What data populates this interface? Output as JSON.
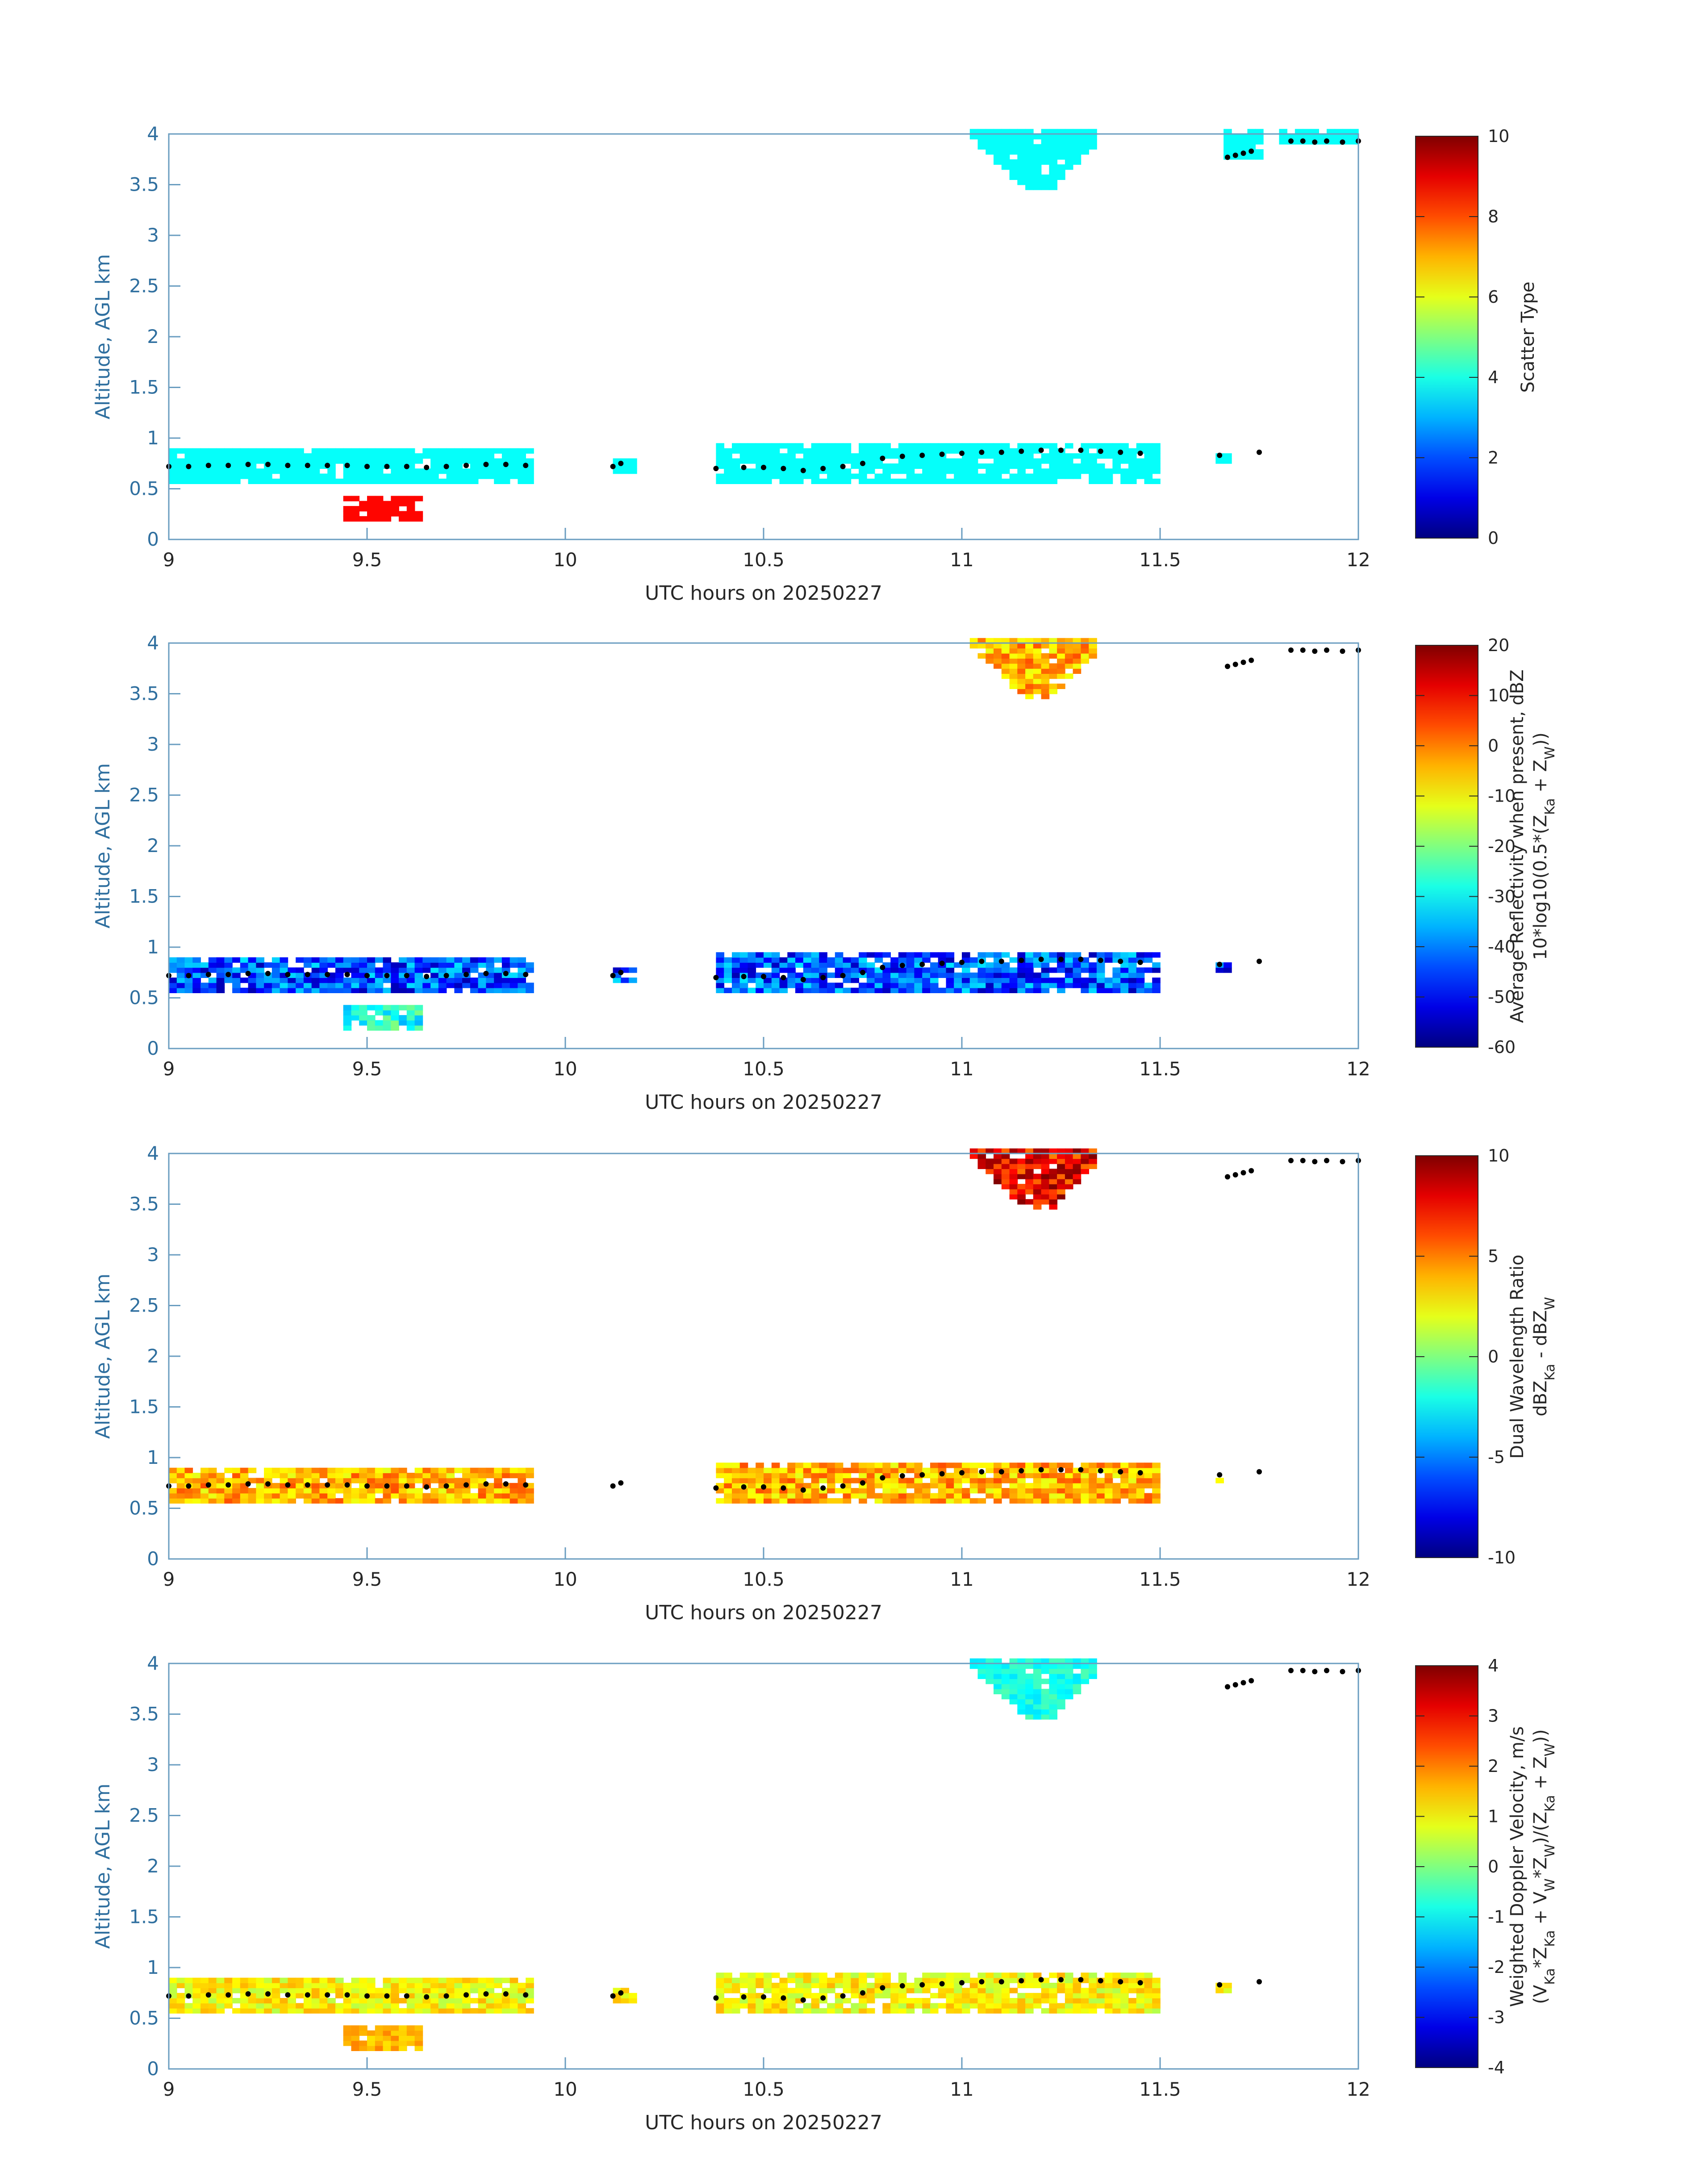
{
  "chart_data": [
    {
      "type": "heatmap",
      "xlabel": "UTC hours on 20250227",
      "ylabel": "Altitude, AGL km",
      "xlim": [
        9,
        12
      ],
      "ylim": [
        0,
        4
      ],
      "xticks": [
        "9",
        "9.5",
        "10",
        "10.5",
        "11",
        "11.5",
        "12"
      ],
      "yticks": [
        "0",
        "0.5",
        "1",
        "1.5",
        "2",
        "2.5",
        "3",
        "3.5",
        "4"
      ],
      "colorbar": {
        "label_lines": [
          "Scatter Type"
        ],
        "range": [
          0,
          10
        ],
        "ticks": [
          "0",
          "2",
          "4",
          "6",
          "8",
          "10"
        ]
      },
      "cloud_layer": {
        "x_start": 9.0,
        "x_end": 9.9,
        "alt_bottom": 0.6,
        "alt_top": 0.9,
        "value": 3.8
      },
      "cloud_layer_2": {
        "x_start": 10.38,
        "x_end": 11.48,
        "alt_bottom": 0.6,
        "alt_top": 0.95,
        "value": 3.8
      },
      "upper_cloud": {
        "x_start": 11.05,
        "x_end": 11.3,
        "alt_bottom": 3.45,
        "alt_top": 4.0,
        "value": 3.8
      },
      "surface_echo": {
        "x_start": 9.45,
        "x_end": 9.6,
        "alt_bottom": 0.18,
        "alt_top": 0.4,
        "value": 8.5
      }
    },
    {
      "type": "heatmap",
      "xlabel": "UTC hours on 20250227",
      "ylabel": "Altitude, AGL km",
      "xlim": [
        9,
        12
      ],
      "ylim": [
        0,
        4
      ],
      "xticks": [
        "9",
        "9.5",
        "10",
        "10.5",
        "11",
        "11.5",
        "12"
      ],
      "yticks": [
        "0",
        "0.5",
        "1",
        "1.5",
        "2",
        "2.5",
        "3",
        "3.5",
        "4"
      ],
      "colorbar": {
        "label_lines": [
          "Average Reflectivity when present, dBZ",
          "10*log10(0.5*(Z",
          "Ka",
          " + Z",
          "W",
          "))"
        ],
        "range": [
          -60,
          20
        ],
        "ticks": [
          "-60",
          "-50",
          "-40",
          "-30",
          "-20",
          "-10",
          "0",
          "10",
          "20"
        ]
      }
    },
    {
      "type": "heatmap",
      "xlabel": "UTC hours on 20250227",
      "ylabel": "Altitude, AGL km",
      "xlim": [
        9,
        12
      ],
      "ylim": [
        0,
        4
      ],
      "xticks": [
        "9",
        "9.5",
        "10",
        "10.5",
        "11",
        "11.5",
        "12"
      ],
      "yticks": [
        "0",
        "0.5",
        "1",
        "1.5",
        "2",
        "2.5",
        "3",
        "3.5",
        "4"
      ],
      "colorbar": {
        "label_lines": [
          "Dual Wavelength Ratio",
          "dBZ",
          "Ka",
          " - dBZ",
          "W"
        ],
        "range": [
          -10,
          10
        ],
        "ticks": [
          "-10",
          "-5",
          "0",
          "5",
          "10"
        ]
      }
    },
    {
      "type": "heatmap",
      "xlabel": "UTC hours on 20250227",
      "ylabel": "Altitude, AGL km",
      "xlim": [
        9,
        12
      ],
      "ylim": [
        0,
        4
      ],
      "xticks": [
        "9",
        "9.5",
        "10",
        "10.5",
        "11",
        "11.5",
        "12"
      ],
      "yticks": [
        "0",
        "0.5",
        "1",
        "1.5",
        "2",
        "2.5",
        "3",
        "3.5",
        "4"
      ],
      "colorbar": {
        "label_lines": [
          "Weighted Doppler Velocity, m/s",
          "(V",
          "Ka",
          "*Z",
          "Ka",
          " + V",
          "W",
          "*Z",
          "W",
          ")/(Z",
          "Ka",
          " + Z",
          "W",
          "))"
        ],
        "range": [
          -4,
          4
        ],
        "ticks": [
          "-4",
          "-3",
          "-2",
          "-1",
          "0",
          "1",
          "2",
          "3",
          "4"
        ]
      }
    }
  ],
  "cloud_base_dots": {
    "x": [
      9.0,
      9.05,
      9.1,
      9.15,
      9.2,
      9.25,
      9.3,
      9.35,
      9.4,
      9.45,
      9.5,
      9.55,
      9.6,
      9.65,
      9.7,
      9.75,
      9.8,
      9.85,
      9.9,
      10.12,
      10.14,
      10.38,
      10.45,
      10.5,
      10.55,
      10.6,
      10.65,
      10.7,
      10.75,
      10.8,
      10.85,
      10.9,
      10.95,
      11.0,
      11.05,
      11.1,
      11.15,
      11.2,
      11.25,
      11.3,
      11.35,
      11.4,
      11.45,
      11.65,
      11.67,
      11.69,
      11.71,
      11.73,
      11.75,
      11.83,
      11.86,
      11.89,
      11.92,
      11.96,
      12.0
    ],
    "y": [
      0.72,
      0.72,
      0.73,
      0.73,
      0.74,
      0.74,
      0.73,
      0.73,
      0.73,
      0.73,
      0.72,
      0.72,
      0.72,
      0.71,
      0.72,
      0.73,
      0.74,
      0.74,
      0.73,
      0.72,
      0.75,
      0.7,
      0.71,
      0.71,
      0.7,
      0.68,
      0.7,
      0.72,
      0.75,
      0.8,
      0.82,
      0.83,
      0.84,
      0.85,
      0.86,
      0.86,
      0.87,
      0.88,
      0.88,
      0.88,
      0.87,
      0.86,
      0.85,
      0.83,
      3.77,
      3.79,
      3.81,
      3.83,
      0.86,
      3.93,
      3.93,
      3.92,
      3.93,
      3.92,
      3.93
    ]
  }
}
